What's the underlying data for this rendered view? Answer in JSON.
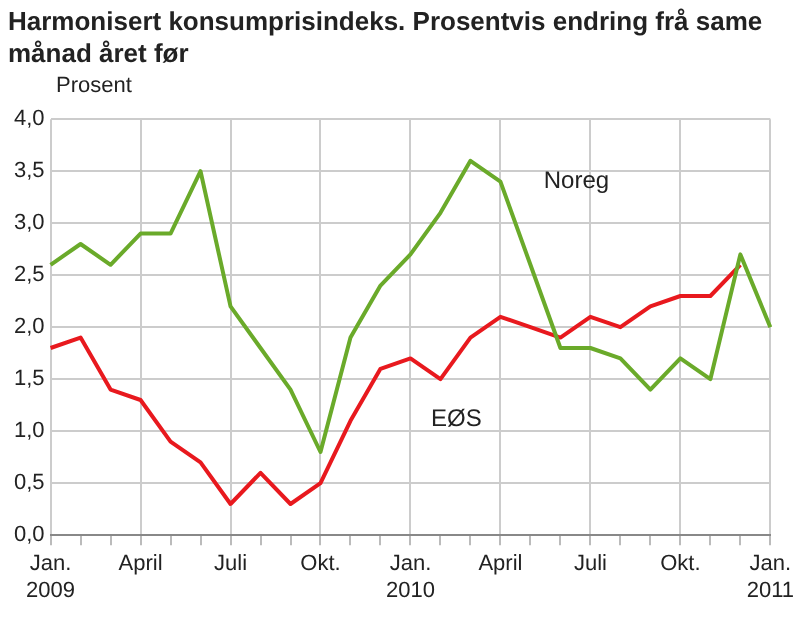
{
  "chart_data": {
    "type": "line",
    "title": "Harmonisert konsumprisindeks. Prosentvis endring frå same månad året før",
    "ylabel": "Prosent",
    "categories": [
      "Jan.\n2009",
      null,
      null,
      "April",
      null,
      null,
      "Juli",
      null,
      null,
      "Okt.",
      null,
      null,
      "Jan.\n2010",
      null,
      null,
      "April",
      null,
      null,
      "Juli",
      null,
      null,
      "Okt.",
      null,
      null,
      "Jan.\n2011"
    ],
    "series": [
      {
        "name": "Noreg",
        "color": "#6aaa2a",
        "values": [
          2.6,
          2.8,
          2.6,
          2.9,
          2.9,
          3.5,
          2.2,
          1.8,
          1.4,
          0.8,
          1.9,
          2.4,
          2.7,
          3.1,
          3.6,
          3.4,
          2.6,
          1.8,
          1.8,
          1.7,
          1.4,
          1.7,
          1.5,
          2.7,
          2.0
        ]
      },
      {
        "name": "EØS",
        "color": "#e8191e",
        "values": [
          1.8,
          1.9,
          1.4,
          1.3,
          0.9,
          0.7,
          0.3,
          0.6,
          0.3,
          0.5,
          1.1,
          1.6,
          1.7,
          1.5,
          1.9,
          2.1,
          2.0,
          1.9,
          2.1,
          2.0,
          2.2,
          2.3,
          2.3,
          2.6,
          null
        ]
      }
    ],
    "ylim": [
      0,
      4
    ],
    "yticks": [
      {
        "value": 0,
        "label": "0,0"
      },
      {
        "value": 0.5,
        "label": "0,5"
      },
      {
        "value": 1,
        "label": "1,0"
      },
      {
        "value": 1.5,
        "label": "1,5"
      },
      {
        "value": 2,
        "label": "2,0"
      },
      {
        "value": 2.5,
        "label": "2,5"
      },
      {
        "value": 3,
        "label": "3,0"
      },
      {
        "value": 3.5,
        "label": "3,5"
      },
      {
        "value": 4,
        "label": "4,0"
      }
    ],
    "grid": true,
    "legend": false,
    "marker": "none",
    "line_style": "solid"
  }
}
